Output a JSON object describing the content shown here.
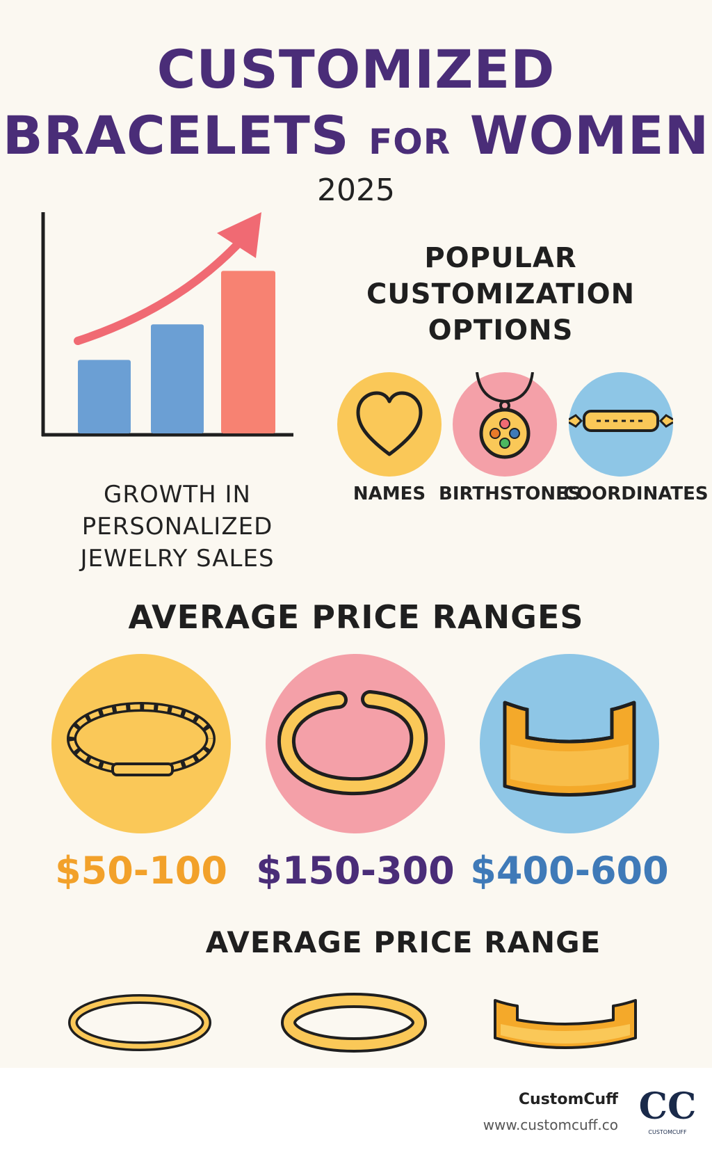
{
  "title": {
    "line1": "CUSTOMIZED",
    "line2_a": "BRACELETS ",
    "line2_b": "FOR",
    "line2_c": " WOMEN",
    "year": "2025"
  },
  "growth_chart": {
    "caption": "GROWTH IN PERSONALIZED JEWELRY SALES",
    "bars": [
      0.33,
      0.49,
      0.73
    ],
    "colors": [
      "#6b9fd4",
      "#6b9fd4",
      "#f78272"
    ],
    "arrow_color": "#f06a73"
  },
  "options": {
    "heading": [
      "POPULAR",
      "CUSTOMIZATION",
      "OPTIONS"
    ],
    "items": [
      {
        "label": "NAMES",
        "icon": "heart-icon",
        "color": "#fac858"
      },
      {
        "label": "BIRTHSTONES",
        "icon": "pendant-icon",
        "color": "#f4a0a8"
      },
      {
        "label": "COORDINATES",
        "icon": "bar-bracelet-icon",
        "color": "#8ec6e6"
      }
    ]
  },
  "prices": {
    "heading": "AVERAGE PRICE RANGES",
    "items": [
      {
        "label": "$50-100",
        "icon": "chain-bracelet-icon",
        "circle": "#fac858",
        "text_color": "#f2a12a"
      },
      {
        "label": "$150-300",
        "icon": "bangle-icon",
        "circle": "#f4a0a8",
        "text_color": "#4a2d78"
      },
      {
        "label": "$400-600",
        "icon": "cuff-icon",
        "circle": "#8ec6e6",
        "text_color": "#3f7ab8"
      }
    ]
  },
  "range": {
    "heading": "AVERAGE PRICE RANGE"
  },
  "footer": {
    "brand": "CustomCuff",
    "url": "www.customcuff.co",
    "logo_mark": "CC",
    "logo_sub": "CUSTOMCUFF"
  }
}
